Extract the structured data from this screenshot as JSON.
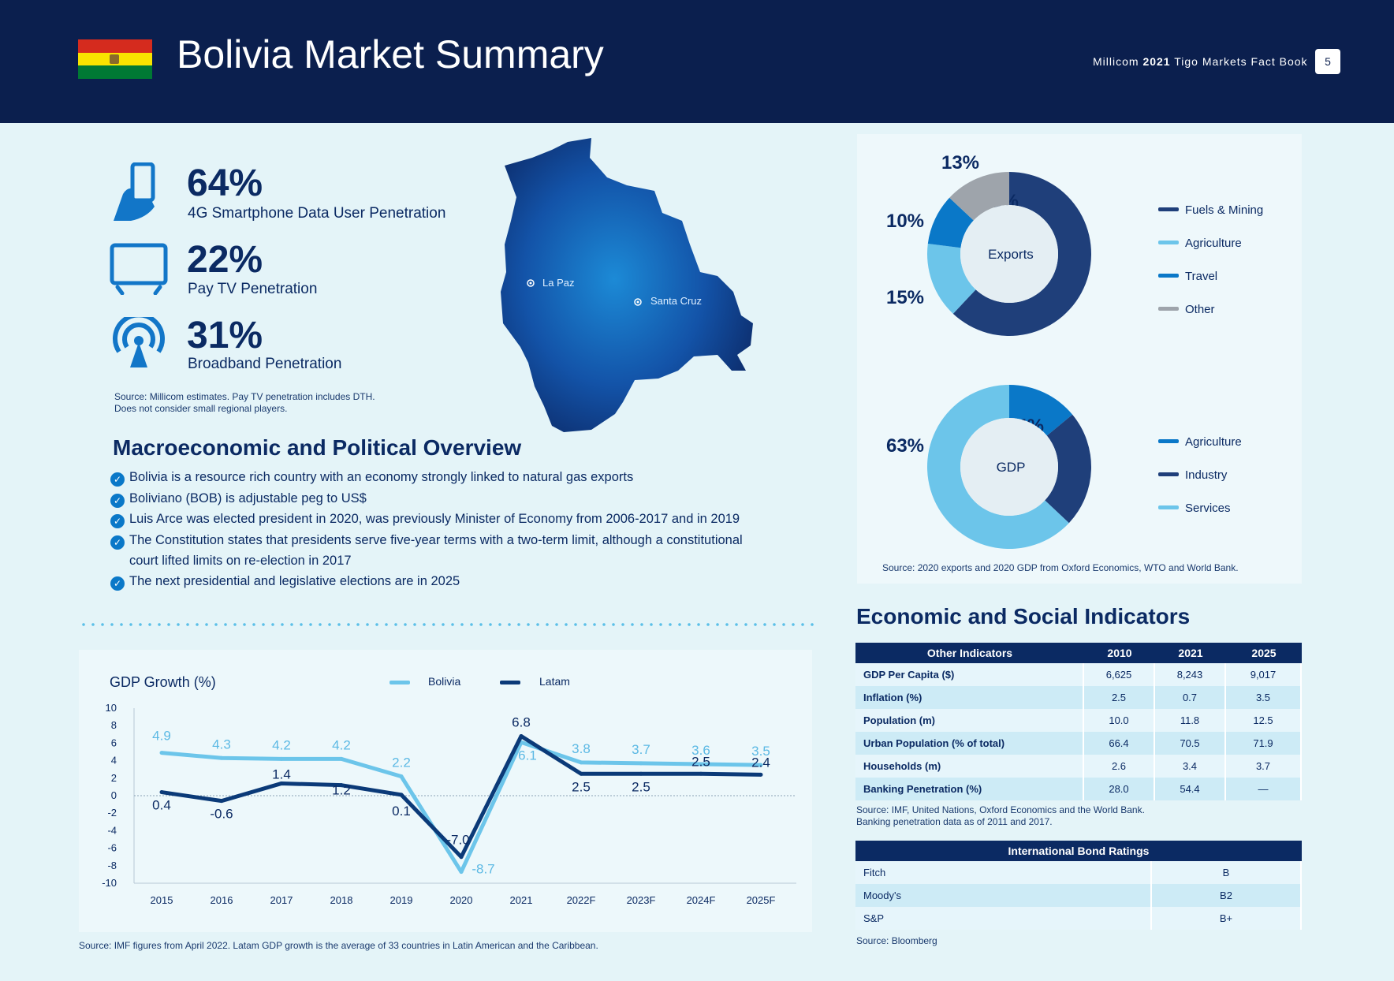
{
  "header": {
    "title": "Bolivia Market Summary",
    "book_prefix": "Millicom",
    "book_year": "2021",
    "book_suffix": "Tigo Markets Fact Book",
    "page_number": "5",
    "flag_colors": [
      "#d52b1e",
      "#f9e300",
      "#007934"
    ]
  },
  "kpis": [
    {
      "icon": "smartphone-hand-icon",
      "value": "64%",
      "label": "4G Smartphone Data User Penetration"
    },
    {
      "icon": "tv-icon",
      "value": "22%",
      "label": "Pay TV Penetration"
    },
    {
      "icon": "broadcast-tower-icon",
      "value": "31%",
      "label": "Broadband Penetration"
    }
  ],
  "kpi_source": {
    "line1": "Source: Millicom estimates. Pay TV penetration includes DTH.",
    "line2": "Does not consider small regional players."
  },
  "map": {
    "cities": [
      "La Paz",
      "Santa Cruz"
    ]
  },
  "macro": {
    "title": "Macroeconomic and Political Overview",
    "bullets": [
      "Bolivia is a resource rich country with an economy strongly linked to natural gas exports",
      "Boliviano (BOB) is adjustable peg to US$",
      "Luis Arce was elected president in 2020, was previously Minister of Economy from 2006-2017 and in 2019",
      "The Constitution states that presidents serve  five-year terms with a two-term limit, although a constitutional",
      "court lifted limits on re-election in 2017",
      "The next presidential and legislative elections are in 2025"
    ]
  },
  "chart_data": [
    {
      "type": "line",
      "title": "GDP Growth (%)",
      "x": [
        "2015",
        "2016",
        "2017",
        "2018",
        "2019",
        "2020",
        "2021",
        "2022F",
        "2023F",
        "2024F",
        "2025F"
      ],
      "series": [
        {
          "name": "Bolivia",
          "color": "#6cc5ea",
          "values": [
            4.9,
            4.3,
            4.2,
            4.2,
            2.2,
            -8.7,
            6.1,
            3.8,
            3.7,
            3.6,
            3.5
          ]
        },
        {
          "name": "Latam",
          "color": "#0b3a78",
          "values": [
            0.4,
            -0.6,
            1.4,
            1.2,
            0.1,
            -7.0,
            6.8,
            2.5,
            2.5,
            2.5,
            2.4
          ]
        }
      ],
      "yticks": [
        "10",
        "8",
        "6",
        "4",
        "2",
        "0",
        "-2",
        "-4",
        "-6",
        "-8",
        "-10"
      ],
      "ylim": [
        -10,
        10
      ],
      "source": "Source: IMF figures from April 2022. Latam GDP growth is the average of 33 countries in Latin American and the Caribbean."
    },
    {
      "type": "pie",
      "title": "Exports",
      "categories": [
        "Fuels & Mining",
        "Agriculture",
        "Travel",
        "Other"
      ],
      "values": [
        62,
        15,
        10,
        13
      ],
      "labels": [
        "62%",
        "15%",
        "10%",
        "13%"
      ],
      "colors": [
        "#1f3f7a",
        "#6cc5ea",
        "#0a78c8",
        "#9ea4ab"
      ]
    },
    {
      "type": "pie",
      "title": "GDP",
      "categories": [
        "Agriculture",
        "Industry",
        "Services"
      ],
      "values": [
        14,
        23,
        63
      ],
      "labels": [
        "14%",
        "23%",
        "63%"
      ],
      "colors": [
        "#0a78c8",
        "#1f3f7a",
        "#6cc5ea"
      ]
    }
  ],
  "donut_source": "Source: 2020 exports and 2020 GDP from Oxford Economics, WTO and World Bank.",
  "indicators": {
    "title": "Economic and Social Indicators",
    "headers": [
      "Other Indicators",
      "2010",
      "2021",
      "2025"
    ],
    "rows": [
      [
        "GDP Per Capita ($)",
        "6,625",
        "8,243",
        "9,017"
      ],
      [
        "Inflation (%)",
        "2.5",
        "0.7",
        "3.5"
      ],
      [
        "Population (m)",
        "10.0",
        "11.8",
        "12.5"
      ],
      [
        "Urban Population (% of total)",
        "66.4",
        "70.5",
        "71.9"
      ],
      [
        "Households (m)",
        "2.6",
        "3.4",
        "3.7"
      ],
      [
        "Banking Penetration (%)",
        "28.0",
        "54.4",
        "—"
      ]
    ],
    "source_line1": "Source: IMF, United Nations, Oxford Economics and the World Bank.",
    "source_line2": "Banking penetration data as of 2011 and 2017."
  },
  "bonds": {
    "title": "International Bond Ratings",
    "rows": [
      [
        "Fitch",
        "B"
      ],
      [
        "Moody's",
        "B2"
      ],
      [
        "S&P",
        "B+"
      ]
    ],
    "source": "Source: Bloomberg"
  }
}
